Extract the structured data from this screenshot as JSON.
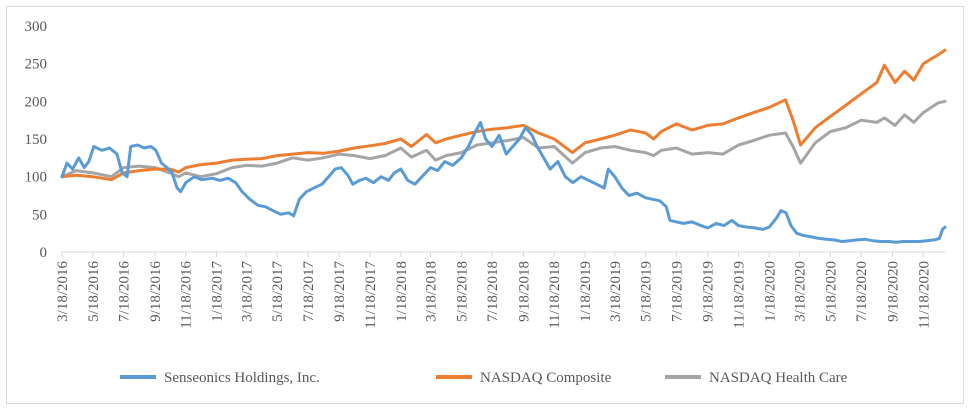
{
  "chart_data": {
    "type": "line",
    "title": "",
    "xlabel": "",
    "ylabel": "",
    "ylim": [
      0,
      300
    ],
    "yticks": [
      0,
      50,
      100,
      150,
      200,
      250,
      300
    ],
    "grid": false,
    "legend_position": "bottom",
    "x_tick_labels": [
      "3/18/2016",
      "5/18/2016",
      "7/18/2016",
      "9/18/2016",
      "11/18/2016",
      "1/18/2017",
      "3/18/2017",
      "5/18/2017",
      "7/18/2017",
      "9/18/2017",
      "11/18/2017",
      "1/18/2018",
      "3/18/2018",
      "5/18/2018",
      "7/18/2018",
      "9/18/2018",
      "11/18/2018",
      "1/18/2019",
      "3/18/2019",
      "5/18/2019",
      "7/18/2019",
      "9/18/2019",
      "11/18/2019",
      "1/18/2020",
      "3/18/2020",
      "5/18/2020",
      "7/18/2020",
      "9/18/2020",
      "11/18/2020"
    ],
    "x_range": [
      "2016-03-18",
      "2020-12-31"
    ],
    "series": [
      {
        "name": "Senseonics Holdings, Inc.",
        "color": "#5b9bd5",
        "points": [
          [
            "2016-03-18",
            100
          ],
          [
            "2016-03-28",
            118
          ],
          [
            "2016-04-08",
            110
          ],
          [
            "2016-04-20",
            125
          ],
          [
            "2016-05-01",
            112
          ],
          [
            "2016-05-10",
            120
          ],
          [
            "2016-05-20",
            140
          ],
          [
            "2016-06-05",
            135
          ],
          [
            "2016-06-20",
            138
          ],
          [
            "2016-07-05",
            130
          ],
          [
            "2016-07-15",
            105
          ],
          [
            "2016-07-25",
            100
          ],
          [
            "2016-08-01",
            140
          ],
          [
            "2016-08-15",
            142
          ],
          [
            "2016-08-28",
            138
          ],
          [
            "2016-09-10",
            140
          ],
          [
            "2016-09-20",
            135
          ],
          [
            "2016-10-01",
            118
          ],
          [
            "2016-10-12",
            112
          ],
          [
            "2016-10-22",
            105
          ],
          [
            "2016-11-01",
            85
          ],
          [
            "2016-11-08",
            80
          ],
          [
            "2016-11-18",
            92
          ],
          [
            "2016-12-05",
            100
          ],
          [
            "2016-12-20",
            96
          ],
          [
            "2017-01-10",
            98
          ],
          [
            "2017-01-25",
            95
          ],
          [
            "2017-02-10",
            98
          ],
          [
            "2017-02-25",
            92
          ],
          [
            "2017-03-10",
            80
          ],
          [
            "2017-03-25",
            70
          ],
          [
            "2017-04-10",
            62
          ],
          [
            "2017-04-25",
            60
          ],
          [
            "2017-05-10",
            55
          ],
          [
            "2017-05-25",
            50
          ],
          [
            "2017-06-10",
            52
          ],
          [
            "2017-06-20",
            48
          ],
          [
            "2017-07-01",
            70
          ],
          [
            "2017-07-15",
            80
          ],
          [
            "2017-07-30",
            85
          ],
          [
            "2017-08-15",
            90
          ],
          [
            "2017-08-28",
            100
          ],
          [
            "2017-09-10",
            110
          ],
          [
            "2017-09-22",
            112
          ],
          [
            "2017-10-05",
            102
          ],
          [
            "2017-10-15",
            90
          ],
          [
            "2017-10-28",
            95
          ],
          [
            "2017-11-10",
            98
          ],
          [
            "2017-11-25",
            92
          ],
          [
            "2017-12-10",
            100
          ],
          [
            "2017-12-25",
            95
          ],
          [
            "2018-01-05",
            105
          ],
          [
            "2018-01-18",
            110
          ],
          [
            "2018-02-01",
            95
          ],
          [
            "2018-02-15",
            90
          ],
          [
            "2018-03-01",
            100
          ],
          [
            "2018-03-18",
            112
          ],
          [
            "2018-04-01",
            108
          ],
          [
            "2018-04-15",
            120
          ],
          [
            "2018-05-01",
            115
          ],
          [
            "2018-05-18",
            125
          ],
          [
            "2018-06-01",
            140
          ],
          [
            "2018-06-15",
            160
          ],
          [
            "2018-06-25",
            172
          ],
          [
            "2018-07-05",
            150
          ],
          [
            "2018-07-18",
            140
          ],
          [
            "2018-08-01",
            155
          ],
          [
            "2018-08-15",
            130
          ],
          [
            "2018-08-28",
            140
          ],
          [
            "2018-09-10",
            150
          ],
          [
            "2018-09-22",
            165
          ],
          [
            "2018-10-05",
            155
          ],
          [
            "2018-10-15",
            140
          ],
          [
            "2018-10-28",
            125
          ],
          [
            "2018-11-10",
            110
          ],
          [
            "2018-11-25",
            120
          ],
          [
            "2018-12-10",
            100
          ],
          [
            "2018-12-25",
            92
          ],
          [
            "2019-01-10",
            100
          ],
          [
            "2019-01-25",
            95
          ],
          [
            "2019-02-10",
            90
          ],
          [
            "2019-02-25",
            85
          ],
          [
            "2019-03-05",
            110
          ],
          [
            "2019-03-18",
            100
          ],
          [
            "2019-04-01",
            85
          ],
          [
            "2019-04-15",
            75
          ],
          [
            "2019-05-01",
            78
          ],
          [
            "2019-05-18",
            72
          ],
          [
            "2019-06-01",
            70
          ],
          [
            "2019-06-15",
            68
          ],
          [
            "2019-06-28",
            60
          ],
          [
            "2019-07-05",
            42
          ],
          [
            "2019-07-18",
            40
          ],
          [
            "2019-08-01",
            38
          ],
          [
            "2019-08-18",
            40
          ],
          [
            "2019-09-01",
            36
          ],
          [
            "2019-09-18",
            32
          ],
          [
            "2019-10-05",
            38
          ],
          [
            "2019-10-20",
            35
          ],
          [
            "2019-11-05",
            42
          ],
          [
            "2019-11-18",
            35
          ],
          [
            "2019-12-05",
            33
          ],
          [
            "2019-12-20",
            32
          ],
          [
            "2020-01-05",
            30
          ],
          [
            "2020-01-18",
            33
          ],
          [
            "2020-02-01",
            45
          ],
          [
            "2020-02-10",
            55
          ],
          [
            "2020-02-20",
            52
          ],
          [
            "2020-03-01",
            35
          ],
          [
            "2020-03-12",
            25
          ],
          [
            "2020-03-25",
            22
          ],
          [
            "2020-04-10",
            20
          ],
          [
            "2020-04-25",
            18
          ],
          [
            "2020-05-10",
            17
          ],
          [
            "2020-05-25",
            16
          ],
          [
            "2020-06-10",
            14
          ],
          [
            "2020-06-25",
            15
          ],
          [
            "2020-07-10",
            16
          ],
          [
            "2020-07-25",
            17
          ],
          [
            "2020-08-10",
            15
          ],
          [
            "2020-08-25",
            14
          ],
          [
            "2020-09-10",
            14
          ],
          [
            "2020-09-25",
            13
          ],
          [
            "2020-10-10",
            14
          ],
          [
            "2020-10-25",
            14
          ],
          [
            "2020-11-10",
            14
          ],
          [
            "2020-11-25",
            15
          ],
          [
            "2020-12-10",
            16
          ],
          [
            "2020-12-20",
            18
          ],
          [
            "2020-12-26",
            30
          ],
          [
            "2020-12-31",
            33
          ]
        ]
      },
      {
        "name": "NASDAQ Composite",
        "color": "#ed7d31",
        "points": [
          [
            "2016-03-18",
            100
          ],
          [
            "2016-04-15",
            102
          ],
          [
            "2016-05-18",
            100
          ],
          [
            "2016-06-24",
            96
          ],
          [
            "2016-07-18",
            105
          ],
          [
            "2016-08-18",
            108
          ],
          [
            "2016-09-18",
            110
          ],
          [
            "2016-10-18",
            110
          ],
          [
            "2016-11-04",
            106
          ],
          [
            "2016-11-18",
            112
          ],
          [
            "2016-12-18",
            116
          ],
          [
            "2017-01-18",
            118
          ],
          [
            "2017-02-18",
            122
          ],
          [
            "2017-03-18",
            123
          ],
          [
            "2017-04-18",
            124
          ],
          [
            "2017-05-18",
            128
          ],
          [
            "2017-06-18",
            130
          ],
          [
            "2017-07-18",
            132
          ],
          [
            "2017-08-18",
            131
          ],
          [
            "2017-09-18",
            134
          ],
          [
            "2017-10-18",
            138
          ],
          [
            "2017-11-18",
            141
          ],
          [
            "2017-12-18",
            144
          ],
          [
            "2018-01-18",
            150
          ],
          [
            "2018-02-08",
            140
          ],
          [
            "2018-03-10",
            156
          ],
          [
            "2018-03-28",
            145
          ],
          [
            "2018-04-18",
            150
          ],
          [
            "2018-05-18",
            155
          ],
          [
            "2018-06-18",
            160
          ],
          [
            "2018-07-18",
            163
          ],
          [
            "2018-08-18",
            165
          ],
          [
            "2018-09-18",
            168
          ],
          [
            "2018-10-18",
            158
          ],
          [
            "2018-11-18",
            150
          ],
          [
            "2018-12-24",
            132
          ],
          [
            "2019-01-18",
            145
          ],
          [
            "2019-02-18",
            150
          ],
          [
            "2019-03-18",
            155
          ],
          [
            "2019-04-18",
            162
          ],
          [
            "2019-05-18",
            158
          ],
          [
            "2019-06-03",
            150
          ],
          [
            "2019-06-18",
            160
          ],
          [
            "2019-07-18",
            170
          ],
          [
            "2019-08-18",
            162
          ],
          [
            "2019-09-18",
            168
          ],
          [
            "2019-10-18",
            170
          ],
          [
            "2019-11-18",
            178
          ],
          [
            "2019-12-18",
            185
          ],
          [
            "2020-01-18",
            192
          ],
          [
            "2020-02-19",
            202
          ],
          [
            "2020-03-05",
            175
          ],
          [
            "2020-03-20",
            142
          ],
          [
            "2020-04-18",
            165
          ],
          [
            "2020-05-18",
            180
          ],
          [
            "2020-06-18",
            195
          ],
          [
            "2020-07-18",
            210
          ],
          [
            "2020-08-18",
            225
          ],
          [
            "2020-09-02",
            248
          ],
          [
            "2020-09-23",
            225
          ],
          [
            "2020-10-12",
            240
          ],
          [
            "2020-10-30",
            228
          ],
          [
            "2020-11-18",
            250
          ],
          [
            "2020-12-18",
            262
          ],
          [
            "2020-12-31",
            268
          ]
        ]
      },
      {
        "name": "NASDAQ Health Care",
        "color": "#a5a5a5",
        "points": [
          [
            "2016-03-18",
            100
          ],
          [
            "2016-04-15",
            108
          ],
          [
            "2016-05-18",
            105
          ],
          [
            "2016-06-24",
            100
          ],
          [
            "2016-07-18",
            112
          ],
          [
            "2016-08-18",
            114
          ],
          [
            "2016-09-18",
            112
          ],
          [
            "2016-10-18",
            105
          ],
          [
            "2016-11-04",
            100
          ],
          [
            "2016-11-18",
            105
          ],
          [
            "2016-12-18",
            100
          ],
          [
            "2017-01-18",
            104
          ],
          [
            "2017-02-18",
            112
          ],
          [
            "2017-03-18",
            115
          ],
          [
            "2017-04-18",
            114
          ],
          [
            "2017-05-18",
            118
          ],
          [
            "2017-06-18",
            125
          ],
          [
            "2017-07-18",
            122
          ],
          [
            "2017-08-18",
            125
          ],
          [
            "2017-09-18",
            130
          ],
          [
            "2017-10-18",
            128
          ],
          [
            "2017-11-18",
            124
          ],
          [
            "2017-12-18",
            128
          ],
          [
            "2018-01-18",
            138
          ],
          [
            "2018-02-08",
            126
          ],
          [
            "2018-03-10",
            135
          ],
          [
            "2018-03-28",
            122
          ],
          [
            "2018-04-18",
            128
          ],
          [
            "2018-05-18",
            132
          ],
          [
            "2018-06-18",
            142
          ],
          [
            "2018-07-18",
            145
          ],
          [
            "2018-08-18",
            148
          ],
          [
            "2018-09-18",
            152
          ],
          [
            "2018-10-18",
            138
          ],
          [
            "2018-11-18",
            140
          ],
          [
            "2018-12-24",
            118
          ],
          [
            "2019-01-18",
            132
          ],
          [
            "2019-02-18",
            138
          ],
          [
            "2019-03-18",
            140
          ],
          [
            "2019-04-18",
            135
          ],
          [
            "2019-05-18",
            132
          ],
          [
            "2019-06-03",
            128
          ],
          [
            "2019-06-18",
            135
          ],
          [
            "2019-07-18",
            138
          ],
          [
            "2019-08-18",
            130
          ],
          [
            "2019-09-18",
            132
          ],
          [
            "2019-10-18",
            130
          ],
          [
            "2019-11-18",
            142
          ],
          [
            "2019-12-18",
            148
          ],
          [
            "2020-01-18",
            155
          ],
          [
            "2020-02-19",
            158
          ],
          [
            "2020-03-05",
            140
          ],
          [
            "2020-03-20",
            118
          ],
          [
            "2020-04-18",
            145
          ],
          [
            "2020-05-18",
            160
          ],
          [
            "2020-06-18",
            165
          ],
          [
            "2020-07-18",
            175
          ],
          [
            "2020-08-18",
            172
          ],
          [
            "2020-09-02",
            178
          ],
          [
            "2020-09-23",
            168
          ],
          [
            "2020-10-12",
            182
          ],
          [
            "2020-10-30",
            172
          ],
          [
            "2020-11-18",
            185
          ],
          [
            "2020-12-18",
            198
          ],
          [
            "2020-12-31",
            200
          ]
        ]
      }
    ]
  }
}
